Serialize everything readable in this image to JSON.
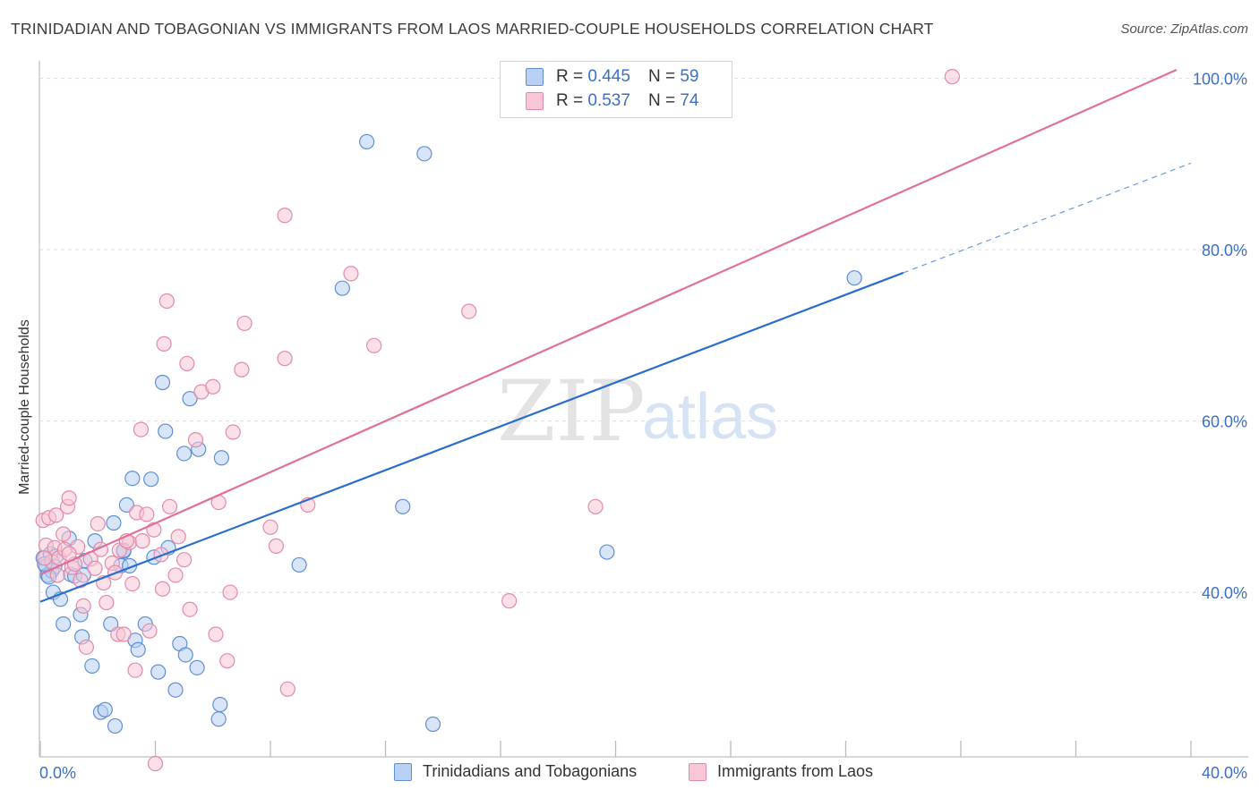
{
  "title": "TRINIDADIAN AND TOBAGONIAN VS IMMIGRANTS FROM LAOS MARRIED-COUPLE HOUSEHOLDS CORRELATION CHART",
  "source": "Source: ZipAtlas.com",
  "watermark": {
    "zip": "ZIP",
    "atlas": "atlas"
  },
  "colors": {
    "blue_fill": "#b8d0f3",
    "blue_stroke": "#5f8fd6",
    "blue_line": "#2a6dd0",
    "pink_fill": "#f8c6d6",
    "pink_stroke": "#e48aa8",
    "pink_line": "#e0709a",
    "grid": "#dddddd",
    "tick_text": "#3b6fc8"
  },
  "legend": {
    "rows": [
      {
        "r_label": "R =",
        "r_value": "0.445",
        "n_label": "N =",
        "n_value": "59"
      },
      {
        "r_label": "R =",
        "r_value": "0.537",
        "n_label": "N =",
        "n_value": "74"
      }
    ]
  },
  "bottom_legend": [
    "Trinidadians and Tobagonians",
    "Immigrants from Laos"
  ],
  "chart_data": {
    "type": "scatter",
    "title": "TRINIDADIAN AND TOBAGONIAN VS IMMIGRANTS FROM LAOS MARRIED-COUPLE HOUSEHOLDS CORRELATION CHART",
    "xlabel": "",
    "ylabel": "Married-couple Households",
    "xlim": [
      0,
      40
    ],
    "ylim": [
      21,
      101
    ],
    "x_tick_labels": [
      "0.0%",
      "40.0%"
    ],
    "y_ticks": [
      40,
      60,
      80,
      100
    ],
    "y_tick_labels": [
      "40.0%",
      "60.0%",
      "80.0%",
      "100.0%"
    ],
    "grid": true,
    "legend_position": "top-center",
    "series": [
      {
        "name": "Trinidadians and Tobagonians",
        "R": 0.445,
        "N": 59,
        "points": [
          [
            0.1,
            44.0
          ],
          [
            0.2,
            43.0
          ],
          [
            0.25,
            42.0
          ],
          [
            0.35,
            44.5
          ],
          [
            0.4,
            42.5
          ],
          [
            0.45,
            40.0
          ],
          [
            0.55,
            44.2
          ],
          [
            0.7,
            39.2
          ],
          [
            0.8,
            36.3
          ],
          [
            1.0,
            46.3
          ],
          [
            1.05,
            42.1
          ],
          [
            1.2,
            41.9
          ],
          [
            1.4,
            37.4
          ],
          [
            1.45,
            34.8
          ],
          [
            1.55,
            43.7
          ],
          [
            1.8,
            31.4
          ],
          [
            1.9,
            46.0
          ],
          [
            2.1,
            26.0
          ],
          [
            2.25,
            26.3
          ],
          [
            2.45,
            36.3
          ],
          [
            2.55,
            48.1
          ],
          [
            2.6,
            24.4
          ],
          [
            2.8,
            43.1
          ],
          [
            2.9,
            44.8
          ],
          [
            3.0,
            50.2
          ],
          [
            3.1,
            43.1
          ],
          [
            3.2,
            53.3
          ],
          [
            3.3,
            34.4
          ],
          [
            3.4,
            33.3
          ],
          [
            3.65,
            36.3
          ],
          [
            3.85,
            53.2
          ],
          [
            3.95,
            44.1
          ],
          [
            4.1,
            30.7
          ],
          [
            4.25,
            64.5
          ],
          [
            4.35,
            58.8
          ],
          [
            4.45,
            45.2
          ],
          [
            4.7,
            28.6
          ],
          [
            4.85,
            34.0
          ],
          [
            5.0,
            56.2
          ],
          [
            5.05,
            32.7
          ],
          [
            5.2,
            62.6
          ],
          [
            5.45,
            31.2
          ],
          [
            5.5,
            56.7
          ],
          [
            6.3,
            55.7
          ],
          [
            6.25,
            26.9
          ],
          [
            6.2,
            25.2
          ],
          [
            9.0,
            43.2
          ],
          [
            10.5,
            75.5
          ],
          [
            11.35,
            92.6
          ],
          [
            12.6,
            50.0
          ],
          [
            13.35,
            91.2
          ],
          [
            13.65,
            24.6
          ],
          [
            19.7,
            44.7
          ],
          [
            28.3,
            76.7
          ],
          [
            0.5,
            43.0
          ],
          [
            1.5,
            42.0
          ],
          [
            2.9,
            44.9
          ],
          [
            0.3,
            41.8
          ],
          [
            0.15,
            43.3
          ]
        ]
      },
      {
        "name": "Immigrants from Laos",
        "R": 0.537,
        "N": 74,
        "points": [
          [
            0.1,
            48.4
          ],
          [
            0.2,
            45.5
          ],
          [
            0.3,
            48.7
          ],
          [
            0.4,
            43.6
          ],
          [
            0.5,
            45.2
          ],
          [
            0.55,
            49.0
          ],
          [
            0.65,
            44.0
          ],
          [
            0.8,
            46.8
          ],
          [
            0.85,
            45.0
          ],
          [
            0.95,
            50.0
          ],
          [
            1.0,
            51.0
          ],
          [
            1.1,
            42.9
          ],
          [
            1.2,
            43.3
          ],
          [
            1.3,
            45.3
          ],
          [
            1.4,
            41.4
          ],
          [
            1.5,
            38.4
          ],
          [
            1.6,
            33.6
          ],
          [
            1.75,
            43.9
          ],
          [
            1.9,
            42.8
          ],
          [
            2.1,
            45.0
          ],
          [
            2.2,
            41.1
          ],
          [
            2.3,
            38.8
          ],
          [
            2.5,
            43.4
          ],
          [
            2.6,
            42.3
          ],
          [
            2.7,
            35.1
          ],
          [
            2.75,
            44.9
          ],
          [
            2.9,
            35.1
          ],
          [
            3.1,
            45.8
          ],
          [
            3.2,
            41.0
          ],
          [
            3.3,
            30.9
          ],
          [
            3.35,
            49.3
          ],
          [
            3.5,
            59.0
          ],
          [
            3.55,
            46.0
          ],
          [
            3.7,
            49.1
          ],
          [
            3.8,
            35.5
          ],
          [
            3.95,
            47.3
          ],
          [
            4.0,
            20.0
          ],
          [
            4.2,
            44.4
          ],
          [
            4.25,
            40.4
          ],
          [
            4.3,
            69.0
          ],
          [
            4.4,
            74.0
          ],
          [
            4.5,
            50.0
          ],
          [
            4.7,
            42.0
          ],
          [
            4.8,
            46.5
          ],
          [
            5.0,
            43.8
          ],
          [
            5.1,
            66.7
          ],
          [
            5.2,
            38.0
          ],
          [
            5.4,
            57.8
          ],
          [
            5.6,
            63.4
          ],
          [
            6.0,
            64.0
          ],
          [
            6.1,
            35.1
          ],
          [
            6.2,
            50.5
          ],
          [
            6.5,
            32.0
          ],
          [
            6.6,
            40.0
          ],
          [
            6.7,
            58.7
          ],
          [
            7.0,
            66.0
          ],
          [
            7.1,
            71.4
          ],
          [
            8.0,
            47.6
          ],
          [
            8.2,
            45.4
          ],
          [
            8.5,
            67.3
          ],
          [
            8.5,
            84.0
          ],
          [
            8.6,
            28.7
          ],
          [
            9.3,
            50.2
          ],
          [
            10.8,
            77.2
          ],
          [
            11.6,
            68.8
          ],
          [
            14.9,
            72.8
          ],
          [
            16.3,
            39.0
          ],
          [
            19.3,
            50.0
          ],
          [
            31.7,
            100.2
          ],
          [
            0.15,
            44.0
          ],
          [
            0.6,
            42.0
          ],
          [
            1.0,
            44.5
          ],
          [
            2.0,
            48.0
          ],
          [
            3.0,
            46.0
          ]
        ]
      }
    ],
    "trendlines": [
      {
        "series": "Trinidadians and Tobagonians",
        "x": [
          0.0,
          40.0
        ],
        "y": [
          38.9,
          90.1
        ],
        "solid_until_x": 30.0
      },
      {
        "series": "Immigrants from Laos",
        "x": [
          0.0,
          39.5
        ],
        "y": [
          42.1,
          101.0
        ]
      }
    ]
  }
}
